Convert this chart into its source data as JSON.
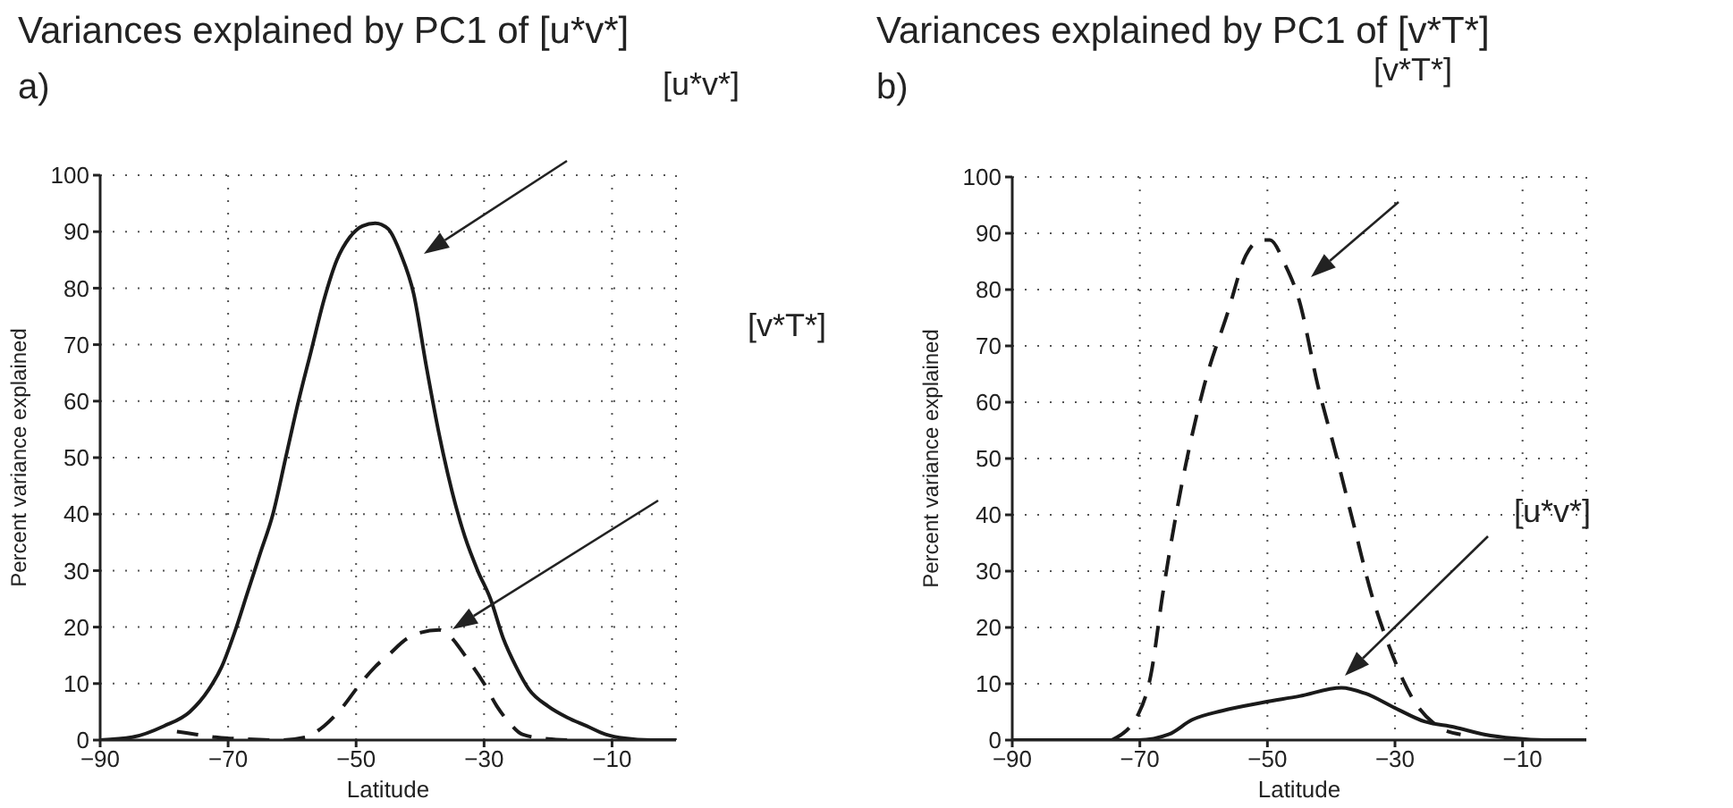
{
  "chart_data": [
    {
      "type": "line",
      "title": "Variances explained by PC1 of [u*v*]",
      "subtitle": "a)",
      "xlabel": "Latitude",
      "ylabel": "Percent variance explained",
      "xlim": [
        -90,
        0
      ],
      "xticks": [
        -90,
        -70,
        -50,
        -30,
        -10
      ],
      "ylim": [
        0,
        100
      ],
      "yticks": [
        0,
        10,
        20,
        30,
        40,
        50,
        60,
        70,
        80,
        90,
        100
      ],
      "grid": true,
      "marker": "none",
      "series": [
        {
          "color": "#1a1a1a",
          "line_style": "solid",
          "x": [
            -90,
            -85,
            -80,
            -76,
            -73,
            -71,
            -69,
            -67,
            -65,
            -63,
            -61,
            -59,
            -57,
            -55,
            -53,
            -51,
            -49,
            -47,
            -45,
            -43,
            -41,
            -39,
            -37,
            -35,
            -33,
            -31,
            -29,
            -27,
            -25,
            -23,
            -20,
            -17,
            -14,
            -11,
            -8,
            -4,
            0
          ],
          "values": [
            0,
            0.5,
            2.5,
            5,
            9,
            13,
            19,
            26,
            33,
            40,
            50,
            60,
            69,
            78,
            85,
            89,
            91,
            91.5,
            90.5,
            86,
            79,
            66,
            54,
            44,
            36,
            30,
            25,
            18,
            13,
            9,
            6,
            4,
            2.5,
            1,
            0.3,
            0,
            0
          ]
        },
        {
          "color": "#1a1a1a",
          "line_style": "dashed",
          "x": [
            -78,
            -75,
            -72,
            -68,
            -62,
            -58,
            -55,
            -52,
            -50,
            -47,
            -45,
            -42,
            -40,
            -37,
            -35,
            -33,
            -30,
            -28,
            -26,
            -24,
            -20,
            -17
          ],
          "values": [
            1.5,
            1,
            0.5,
            0.2,
            0,
            0.5,
            2.5,
            6,
            9,
            13,
            15,
            18,
            19,
            19.5,
            18,
            15,
            10,
            6,
            3,
            1,
            0.2,
            0
          ]
        }
      ],
      "annotations": [
        "[u*v*]",
        "[v*T*]"
      ]
    },
    {
      "type": "line",
      "title": "Variances explained by PC1 of [v*T*]",
      "subtitle": "b)",
      "xlabel": "Latitude",
      "ylabel": "Percent variance explained",
      "xlim": [
        -90,
        0
      ],
      "xticks": [
        -90,
        -70,
        -50,
        -30,
        -10
      ],
      "ylim": [
        0,
        100
      ],
      "yticks": [
        0,
        10,
        20,
        30,
        40,
        50,
        60,
        70,
        80,
        90,
        100
      ],
      "grid": true,
      "marker": "none",
      "series": [
        {
          "color": "#1a1a1a",
          "line_style": "dashed",
          "x": [
            -74.4,
            -70.2,
            -68.3,
            -66.4,
            -63.2,
            -59.9,
            -56.2,
            -53.4,
            -51,
            -49.6,
            -47.3,
            -45,
            -42.1,
            -39.3,
            -36.5,
            -33.7,
            -30.9,
            -27.2,
            -23.5,
            -19.7
          ],
          "values": [
            0,
            4.7,
            11.4,
            26,
            46.7,
            63,
            76,
            86,
            88.8,
            88.8,
            84.6,
            78,
            63,
            51,
            38.4,
            26,
            16.6,
            7.3,
            2.6,
            1
          ]
        },
        {
          "color": "#1a1a1a",
          "line_style": "solid",
          "x": [
            -90,
            -80,
            -71,
            -70.2,
            -65.5,
            -61.8,
            -57.1,
            -50.6,
            -45,
            -38.4,
            -34.7,
            -30,
            -25.4,
            -20.7,
            -16,
            -11.3,
            -6.6,
            0
          ],
          "values": [
            0,
            0,
            0,
            0,
            1,
            3.6,
            5.2,
            6.7,
            7.8,
            9.3,
            8.3,
            5.7,
            3.3,
            2.3,
            1,
            0.3,
            0,
            0
          ]
        }
      ],
      "annotations": [
        "[v*T*]",
        "[u*v*]"
      ]
    }
  ]
}
